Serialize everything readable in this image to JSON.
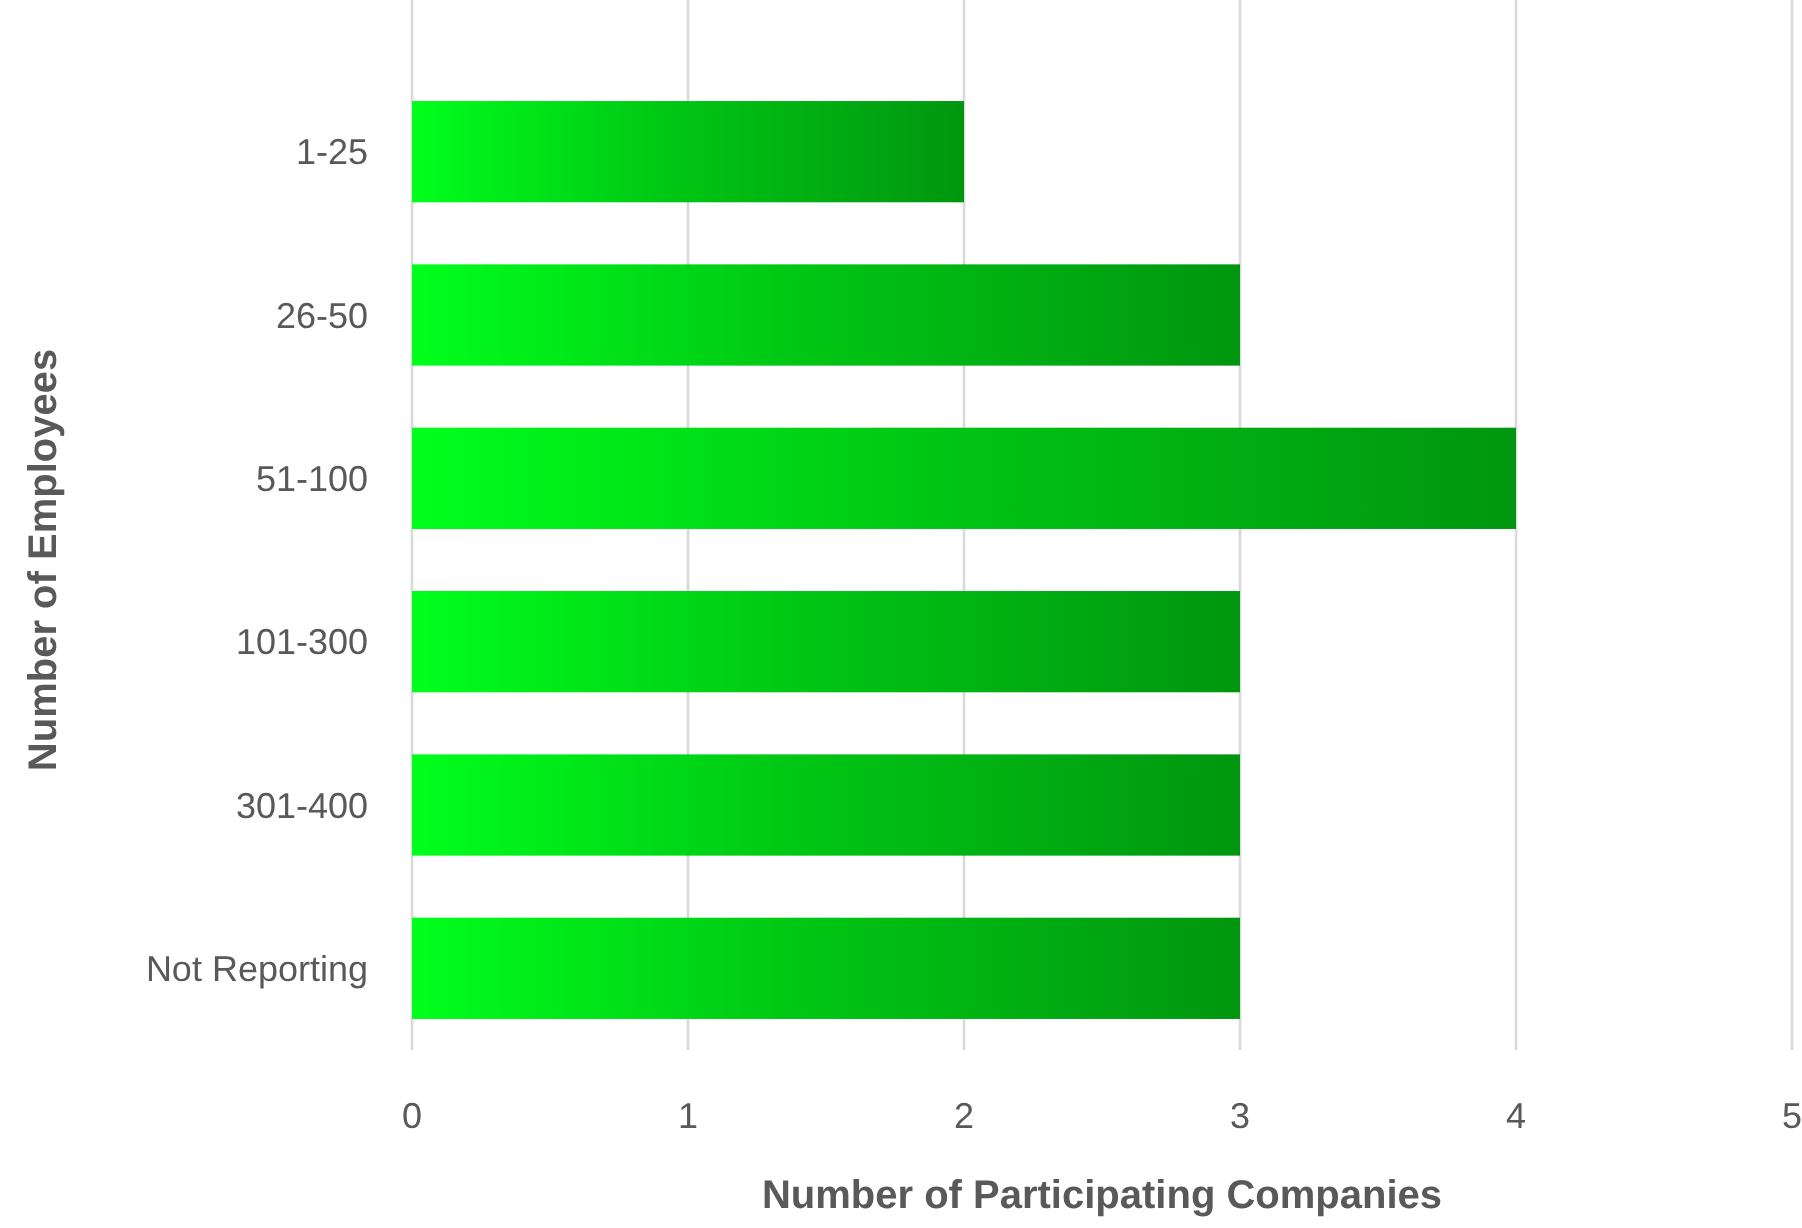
{
  "chart_data": {
    "type": "bar",
    "orientation": "horizontal",
    "xlabel": "Number of Participating Companies",
    "ylabel": "Number of Employees",
    "categories": [
      "1-25",
      "26-50",
      "51-100",
      "101-300",
      "301-400",
      "Not Reporting"
    ],
    "values": [
      2,
      3,
      4,
      3,
      3,
      3
    ],
    "color": "#00c814",
    "xlim": [
      0,
      5
    ],
    "xticks": [
      0,
      1,
      2,
      3,
      4,
      5
    ],
    "grid": "x"
  }
}
